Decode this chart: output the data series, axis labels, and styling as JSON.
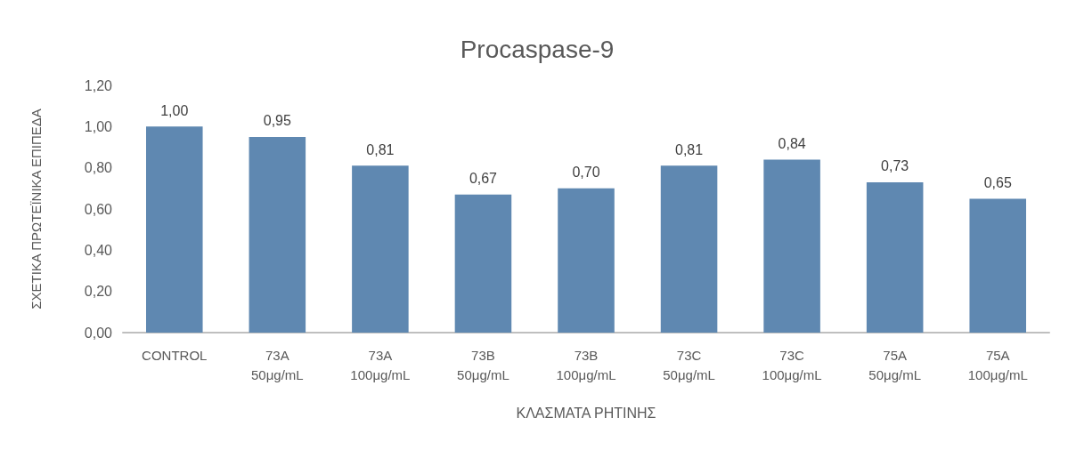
{
  "chart_data": {
    "type": "bar",
    "title": "Procaspase-9",
    "xlabel": "ΚΛΑΣΜΑΤΑ ΡΗΤΙΝΗΣ",
    "ylabel": "ΣΧΕΤΙΚΑ ΠΡΩΤΕΪΝΙΚΑ ΕΠΙΠΕΔΑ",
    "categories": [
      "CONTROL",
      "73A\n50μg/mL",
      "73A\n100μg/mL",
      "73B\n50μg/mL",
      "73B\n100μg/mL",
      "73C\n50μg/mL",
      "73C\n100μg/mL",
      "75A\n50μg/mL",
      "75A\n100μg/mL"
    ],
    "values": [
      1.0,
      0.95,
      0.81,
      0.67,
      0.7,
      0.81,
      0.84,
      0.73,
      0.65
    ],
    "value_labels": [
      "1,00",
      "0,95",
      "0,81",
      "0,67",
      "0,70",
      "0,81",
      "0,84",
      "0,73",
      "0,65"
    ],
    "color": "#5f88b1",
    "ylim": [
      0,
      1.2
    ],
    "yticks": [
      {
        "value": 0,
        "label": "0,00"
      },
      {
        "value": 0.2,
        "label": "0,20"
      },
      {
        "value": 0.4,
        "label": "0,40"
      },
      {
        "value": 0.6,
        "label": "0,60"
      },
      {
        "value": 0.8,
        "label": "0,80"
      },
      {
        "value": 1.0,
        "label": "1,00"
      },
      {
        "value": 1.2,
        "label": "1,20"
      }
    ],
    "grid": false
  }
}
